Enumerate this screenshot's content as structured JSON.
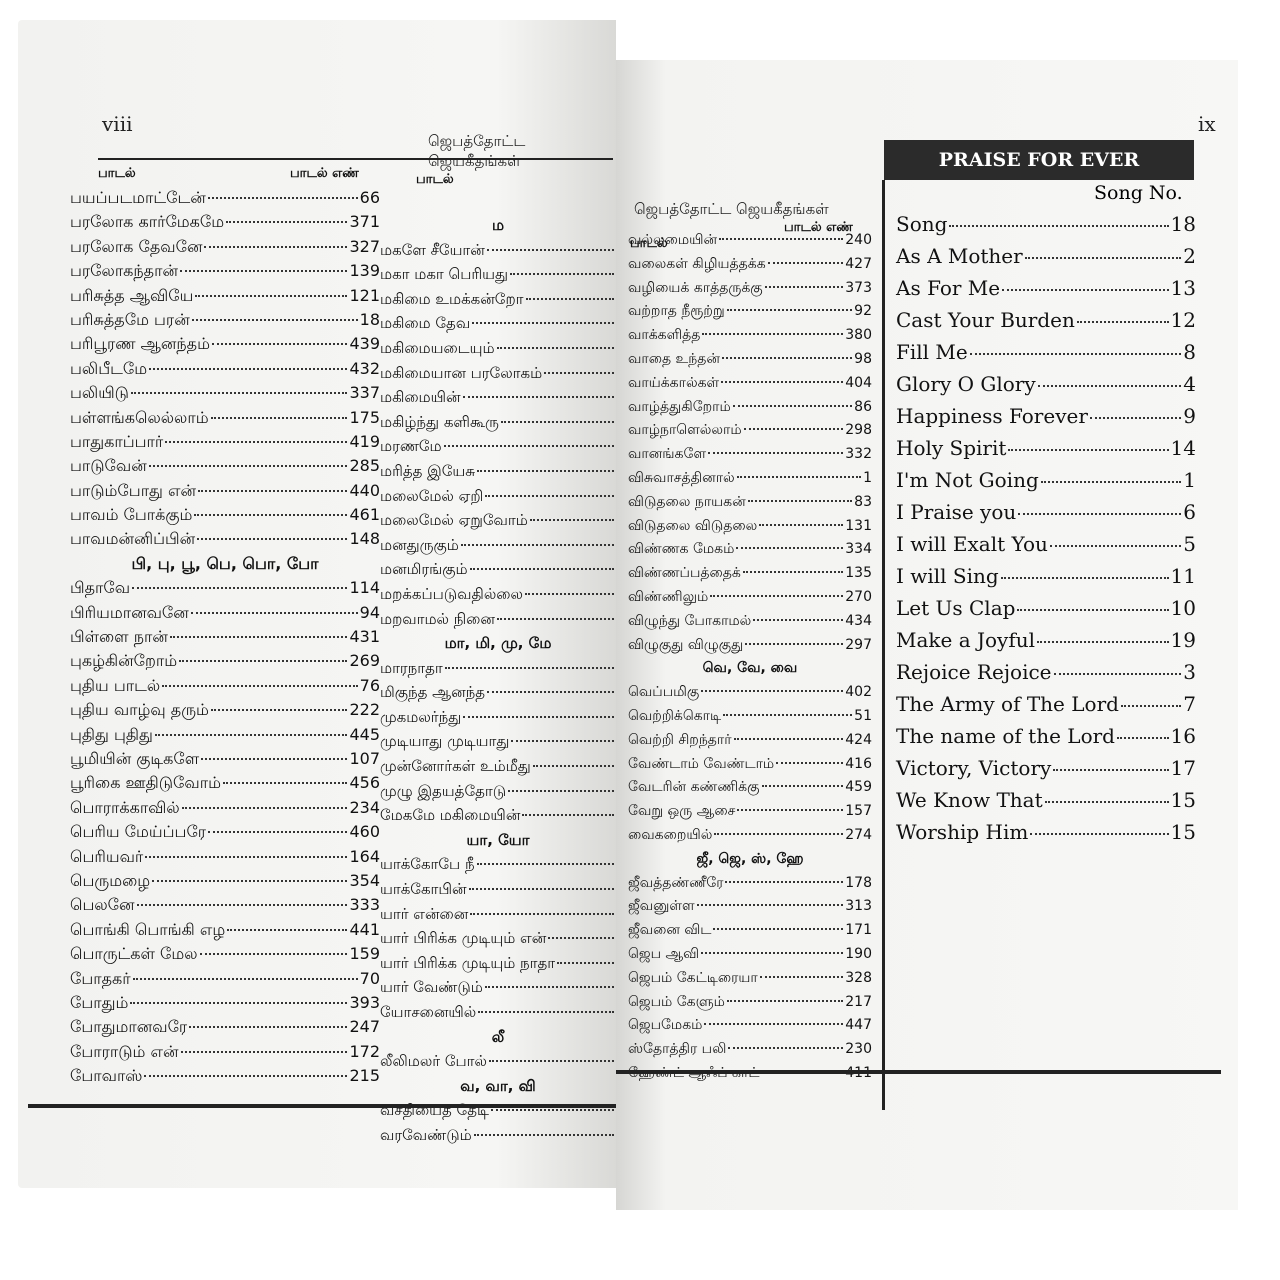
{
  "left_page": {
    "page_number": "viii",
    "running_header": "ஜெபத்தோட்ட ஜெயகீதங்கள்",
    "column_headers": [
      "பாடல்",
      "பாடல் எண்",
      "பாடல்"
    ],
    "column_1": [
      {
        "title": "பயப்படமாட்டேன்",
        "number": "66"
      },
      {
        "title": "பரலோக கார்மேகமே",
        "number": "371"
      },
      {
        "title": "பரலோக தேவனே",
        "number": "327"
      },
      {
        "title": "பரலோகந்தான்",
        "number": "139"
      },
      {
        "title": "பரிசுத்த ஆவியே",
        "number": "121"
      },
      {
        "title": "பரிசுத்தமே பரன்",
        "number": "18"
      },
      {
        "title": "பரிபூரண ஆனந்தம்",
        "number": "439"
      },
      {
        "title": "பலிபீடமே",
        "number": "432"
      },
      {
        "title": "பலியிடு",
        "number": "337"
      },
      {
        "title": "பள்ளங்கலெல்லாம்",
        "number": "175"
      },
      {
        "title": "பாதுகாப்பார்",
        "number": "419"
      },
      {
        "title": "பாடுவேன்",
        "number": "285"
      },
      {
        "title": "பாடும்போது என்",
        "number": "440"
      },
      {
        "title": "பாவம் போக்கும்",
        "number": "461"
      },
      {
        "title": "பாவமன்னிப்பின்",
        "number": "148"
      },
      {
        "section": "பி, பு, பூ, பெ, பொ, போ"
      },
      {
        "title": "பிதாவே",
        "number": "114"
      },
      {
        "title": "பிரியமானவனே",
        "number": "94"
      },
      {
        "title": "பிள்ளை நான்",
        "number": "431"
      },
      {
        "title": "புகழ்கின்றோம்",
        "number": "269"
      },
      {
        "title": "புதிய பாடல்",
        "number": "76"
      },
      {
        "title": "புதிய வாழ்வு தரும்",
        "number": "222"
      },
      {
        "title": "புதிது புதிது",
        "number": "445"
      },
      {
        "title": "பூமியின் குடிகளே",
        "number": "107"
      },
      {
        "title": "பூரிகை ஊதிடுவோம்",
        "number": "456"
      },
      {
        "title": "பொராக்காவில்",
        "number": "234"
      },
      {
        "title": "பெரிய மேய்ப்பரே",
        "number": "460"
      },
      {
        "title": "பெரியவர்",
        "number": "164"
      },
      {
        "title": "பெருமழை",
        "number": "354"
      },
      {
        "title": "பெலனே",
        "number": "333"
      },
      {
        "title": "பொங்கி பொங்கி எழ",
        "number": "441"
      },
      {
        "title": "பொருட்கள் மேல",
        "number": "159"
      },
      {
        "title": "போதகர்",
        "number": "70"
      },
      {
        "title": "போதும்",
        "number": "393"
      },
      {
        "title": "போதுமானவரே",
        "number": "247"
      },
      {
        "title": "போராடும் என்",
        "number": "172"
      },
      {
        "title": "போவாஸ்",
        "number": "215"
      }
    ],
    "column_2": [
      {
        "section": "ம"
      },
      {
        "title": "மகளே சீயோன்"
      },
      {
        "title": "மகா மகா பெரியது"
      },
      {
        "title": "மகிமை உமக்கன்றோ"
      },
      {
        "title": "மகிமை தேவ"
      },
      {
        "title": "மகிமையடையும்"
      },
      {
        "title": "மகிமையான பரலோகம்"
      },
      {
        "title": "மகிமையின்"
      },
      {
        "title": "மகிழ்ந்து களிகூரு"
      },
      {
        "title": "மரணமே"
      },
      {
        "title": "மரித்த இயேசு"
      },
      {
        "title": "மலைமேல் ஏறி"
      },
      {
        "title": "மலைமேல் ஏறுவோம்"
      },
      {
        "title": "மனதுருகும்"
      },
      {
        "title": "மனமிரங்கும்"
      },
      {
        "title": "மறக்கப்படுவதில்லை"
      },
      {
        "title": "மறவாமல் நினை"
      },
      {
        "section": "மா, மி, மு, மே"
      },
      {
        "title": "மாரநாதா"
      },
      {
        "title": "மிகுந்த ஆனந்த"
      },
      {
        "title": "முகமலர்ந்து"
      },
      {
        "title": "முடியாது முடியாது"
      },
      {
        "title": "முன்னோர்கள் உம்மீது"
      },
      {
        "title": "முழு இதயத்தோடு"
      },
      {
        "title": "மேகமே மகிமையின்"
      },
      {
        "section": "யா, யோ"
      },
      {
        "title": "யாக்கோபே நீ"
      },
      {
        "title": "யாக்கோபின்"
      },
      {
        "title": "யார் என்னை"
      },
      {
        "title": "யார் பிரிக்க முடியும் என்"
      },
      {
        "title": "யார் பிரிக்க முடியும் நாதா"
      },
      {
        "title": "யார் வேண்டும்"
      },
      {
        "title": "யோசனையில்"
      },
      {
        "section": "லீ"
      },
      {
        "title": "லீலிமலர் போல்"
      },
      {
        "section": "வ, வா, வி"
      },
      {
        "title": "வசதியைத் தேடி"
      },
      {
        "title": "வரவேண்டும்"
      }
    ]
  },
  "right_page": {
    "page_number": "ix",
    "running_header": "ஜெபத்தோட்ட ஜெயகீதங்கள்",
    "column_headers": [
      "பாடல்",
      "பாடல் எண்"
    ],
    "tamil": [
      {
        "title": "வல்லமையின்",
        "number": "240"
      },
      {
        "title": "வலைகள் கிழியத்தக்க",
        "number": "427"
      },
      {
        "title": "வழியைக் காத்தருக்கு",
        "number": "373"
      },
      {
        "title": "வற்றாத நீரூற்று",
        "number": "92"
      },
      {
        "title": "வாக்களித்த",
        "number": "380"
      },
      {
        "title": "வாதை உந்தன்",
        "number": "98"
      },
      {
        "title": "வாய்க்கால்கள்",
        "number": "404"
      },
      {
        "title": "வாழ்த்துகிறோம்",
        "number": "86"
      },
      {
        "title": "வாழ்நாளெல்லாம்",
        "number": "298"
      },
      {
        "title": "வானங்களே",
        "number": "332"
      },
      {
        "title": "விசுவாசத்தினால்",
        "number": "1"
      },
      {
        "title": "விடுதலை நாயகன்",
        "number": "83"
      },
      {
        "title": "விடுதலை விடுதலை",
        "number": "131"
      },
      {
        "title": "விண்ணக மேகம்",
        "number": "334"
      },
      {
        "title": "விண்ணப்பத்தைக்",
        "number": "135"
      },
      {
        "title": "விண்ணிலும்",
        "number": "270"
      },
      {
        "title": "விழுந்து போகாமல்",
        "number": "434"
      },
      {
        "title": "விழுகுது விழுகுது",
        "number": "297"
      },
      {
        "section": "வெ, வே, வை"
      },
      {
        "title": "வெப்பமிகு",
        "number": "402"
      },
      {
        "title": "வெற்றிக்கொடி",
        "number": "51"
      },
      {
        "title": "வெற்றி சிறந்தார்",
        "number": "424"
      },
      {
        "title": "வேண்டாம் வேண்டாம்",
        "number": "416"
      },
      {
        "title": "வேடரின் கண்ணிக்கு",
        "number": "459"
      },
      {
        "title": "வேறு ஒரு ஆசை",
        "number": "157"
      },
      {
        "title": "வைகறையில்",
        "number": "274"
      },
      {
        "section": "ஜீ, ஜெ, ஸ், ஹே"
      },
      {
        "title": "ஜீவத்தண்ணீரே",
        "number": "178"
      },
      {
        "title": "ஜீவனுள்ள",
        "number": "313"
      },
      {
        "title": "ஜீவனை விட",
        "number": "171"
      },
      {
        "title": "ஜெப ஆவி",
        "number": "190"
      },
      {
        "title": "ஜெபம் கேட்டிரையா",
        "number": "328"
      },
      {
        "title": "ஜெபம் கேளும்",
        "number": "217"
      },
      {
        "title": "ஜெபமேகம்",
        "number": "447"
      },
      {
        "title": "ஸ்தோத்திர பலி",
        "number": "230"
      },
      {
        "title": "ஹேண்ட் ஆஃப் காட்",
        "number": "411"
      }
    ],
    "english": {
      "heading": "PRAISE FOR EVER",
      "number_header": "Song No.",
      "entries": [
        {
          "title": "Song",
          "number": "18"
        },
        {
          "title": "As A Mother",
          "number": "2"
        },
        {
          "title": "As For Me",
          "number": "13"
        },
        {
          "title": "Cast Your Burden",
          "number": "12"
        },
        {
          "title": "Fill Me",
          "number": "8"
        },
        {
          "title": "Glory O Glory",
          "number": "4"
        },
        {
          "title": "Happiness Forever",
          "number": "9"
        },
        {
          "title": "Holy Spirit",
          "number": "14"
        },
        {
          "title": "I'm Not Going",
          "number": "1"
        },
        {
          "title": "I Praise you",
          "number": "6"
        },
        {
          "title": "I will Exalt You",
          "number": "5"
        },
        {
          "title": "I will Sing",
          "number": "11"
        },
        {
          "title": "Let Us Clap",
          "number": "10"
        },
        {
          "title": "Make a Joyful",
          "number": "19"
        },
        {
          "title": "Rejoice Rejoice",
          "number": "3"
        },
        {
          "title": "The Army of The Lord",
          "number": "7"
        },
        {
          "title": "The name of the Lord",
          "number": "16"
        },
        {
          "title": "Victory, Victory",
          "number": "17"
        },
        {
          "title": "We Know That",
          "number": "15"
        },
        {
          "title": "Worship Him",
          "number": "15"
        }
      ]
    }
  }
}
